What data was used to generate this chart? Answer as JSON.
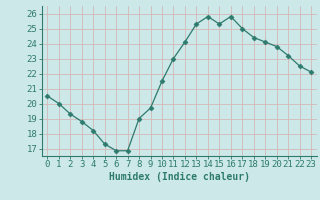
{
  "x": [
    0,
    1,
    2,
    3,
    4,
    5,
    6,
    7,
    8,
    9,
    10,
    11,
    12,
    13,
    14,
    15,
    16,
    17,
    18,
    19,
    20,
    21,
    22,
    23
  ],
  "y": [
    20.5,
    20.0,
    19.3,
    18.8,
    18.2,
    17.3,
    16.85,
    16.85,
    19.0,
    19.7,
    21.5,
    23.0,
    24.1,
    25.3,
    25.8,
    25.3,
    25.8,
    25.0,
    24.4,
    24.1,
    23.8,
    23.2,
    22.5,
    22.1
  ],
  "line_color": "#2e7b6e",
  "marker": "D",
  "marker_size": 2.5,
  "bg_color": "#cce8e8",
  "grid_color": "#b0d4d4",
  "xlabel": "Humidex (Indice chaleur)",
  "ylim": [
    16.5,
    26.5
  ],
  "xlim": [
    -0.5,
    23.5
  ],
  "yticks": [
    17,
    18,
    19,
    20,
    21,
    22,
    23,
    24,
    25,
    26
  ],
  "xticks": [
    0,
    1,
    2,
    3,
    4,
    5,
    6,
    7,
    8,
    9,
    10,
    11,
    12,
    13,
    14,
    15,
    16,
    17,
    18,
    19,
    20,
    21,
    22,
    23
  ],
  "tick_color": "#2e7b6e",
  "label_fontsize": 7,
  "tick_fontsize": 6.5
}
